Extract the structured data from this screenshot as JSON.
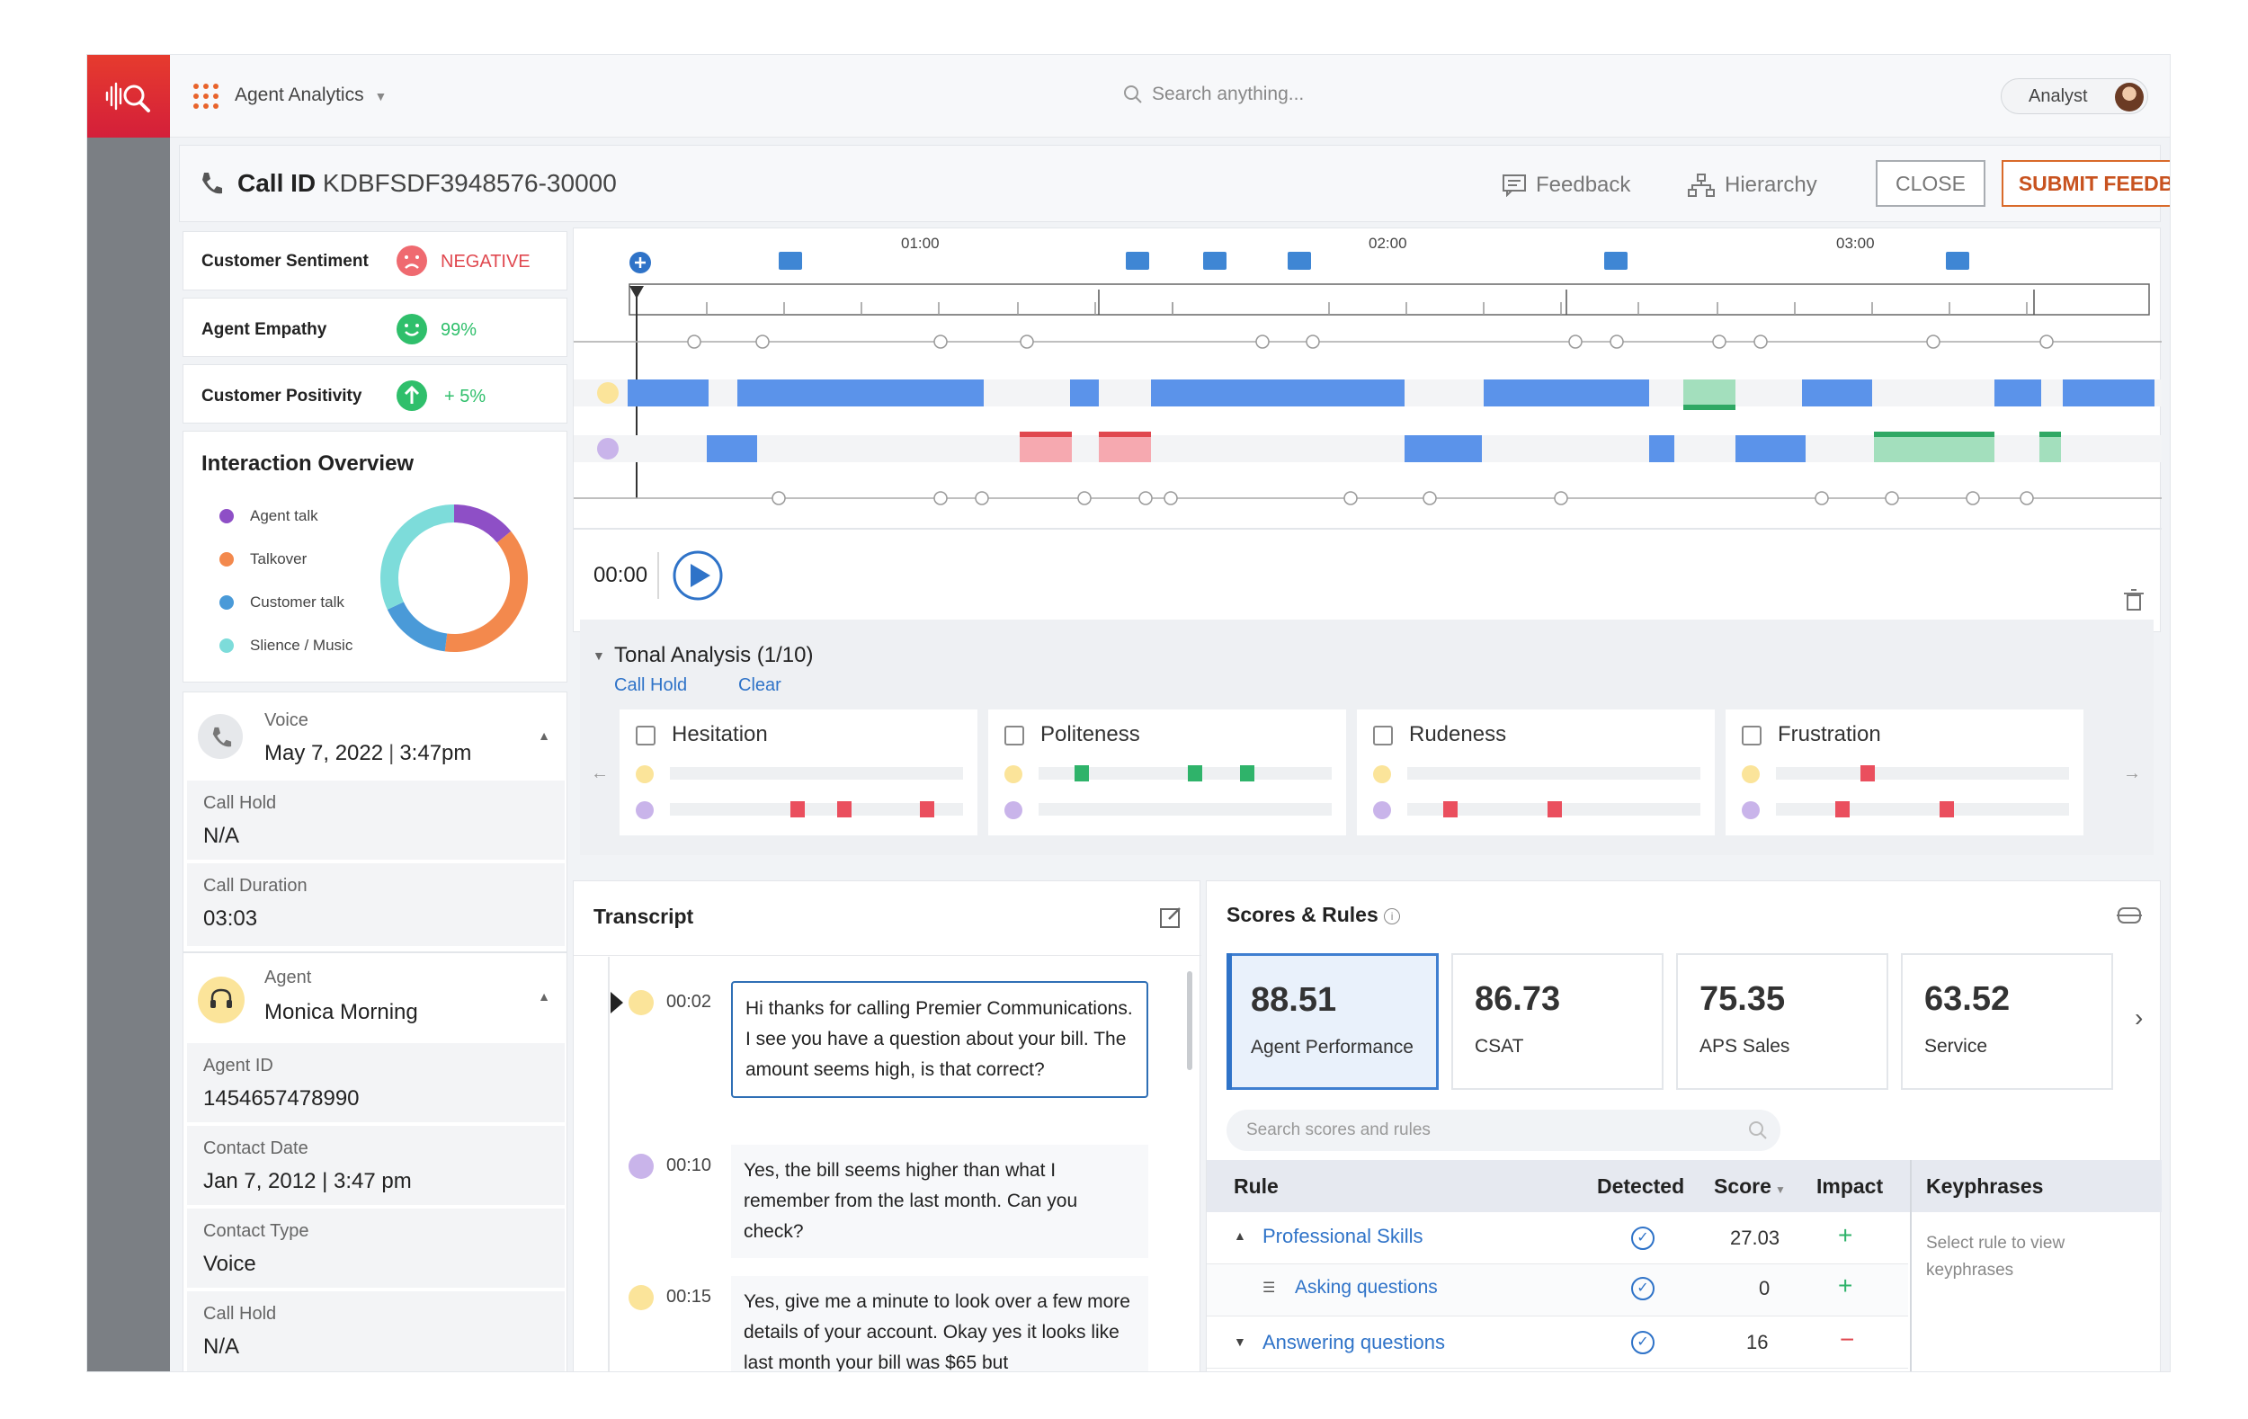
{
  "app": {
    "title": "Agent Analytics",
    "search_placeholder": "Search anything...",
    "user_role": "Analyst",
    "accent": "#e8632b"
  },
  "header": {
    "call_id_label": "Call ID",
    "call_id": "KDBFSDF3948576-30000",
    "feedback": "Feedback",
    "hierarchy": "Hierarchy",
    "close": "CLOSE",
    "submit": "SUBMIT FEEDBACK"
  },
  "metrics": {
    "sentiment": {
      "label": "Customer Sentiment",
      "value": "NEGATIVE",
      "color": "#e0484f"
    },
    "empathy": {
      "label": "Agent Empathy",
      "value": "99%",
      "color": "#2fbf6b"
    },
    "positivity": {
      "label": "Customer Positivity",
      "value": "+ 5%",
      "color": "#2fbf6b"
    }
  },
  "interaction": {
    "title": "Interaction Overview",
    "legend": [
      {
        "label": "Agent talk",
        "color": "#8e4fc6",
        "share": 0.14
      },
      {
        "label": "Talkover",
        "color": "#f3894d",
        "share": 0.38
      },
      {
        "label": "Customer talk",
        "color": "#4a9ad8",
        "share": 0.16
      },
      {
        "label": "Slience / Music",
        "color": "#7ddcda",
        "share": 0.32
      }
    ]
  },
  "voice": {
    "type": "Voice",
    "date": "May 7, 2022",
    "time": "3:47pm",
    "call_hold_label": "Call Hold",
    "call_hold": "N/A",
    "duration_label": "Call Duration",
    "duration": "03:03"
  },
  "agent": {
    "section": "Agent",
    "name": "Monica Morning",
    "id_label": "Agent ID",
    "id": "1454657478990",
    "contact_date_label": "Contact Date",
    "contact_date": "Jan 7, 2012 | 3:47 pm",
    "contact_type_label": "Contact Type",
    "contact_type": "Voice",
    "call_hold_label": "Call Hold",
    "call_hold": "N/A"
  },
  "timeline": {
    "ticks": [
      "01:00",
      "02:00",
      "03:00"
    ],
    "time": "00:00"
  },
  "tonal": {
    "title": "Tonal Analysis (1/10)",
    "call_hold": "Call Hold",
    "clear": "Clear",
    "categories": [
      "Hesitation",
      "Politeness",
      "Rudeness",
      "Frustration"
    ]
  },
  "transcript": {
    "title": "Transcript",
    "messages": [
      {
        "time": "00:02",
        "speaker": "agent",
        "text": "Hi thanks for calling Premier Communications. I see you have a question about your bill. The amount seems high, is that correct?"
      },
      {
        "time": "00:10",
        "speaker": "customer",
        "text": "Yes, the bill seems higher than what I remember from the last month. Can you check?"
      },
      {
        "time": "00:15",
        "speaker": "agent",
        "text": "Yes, give me a minute to look over a few more details of your account. Okay yes it looks like last month your bill was $65 but"
      }
    ]
  },
  "scores": {
    "title": "Scores & Rules",
    "cards": [
      {
        "value": "88.51",
        "name": "Agent Performance"
      },
      {
        "value": "86.73",
        "name": "CSAT"
      },
      {
        "value": "75.35",
        "name": "APS Sales"
      },
      {
        "value": "63.52",
        "name": "Service"
      }
    ],
    "search_placeholder": "Search scores and rules",
    "columns": {
      "rule": "Rule",
      "detected": "Detected",
      "score": "Score",
      "impact": "Impact",
      "keyphrases": "Keyphrases"
    },
    "keyphrase_hint": "Select rule to view keyphrases",
    "rules": [
      {
        "name": "Professional Skills",
        "score": "27.03",
        "impact": "+"
      },
      {
        "name": "Asking questions",
        "score": "0",
        "impact": "+"
      },
      {
        "name": "Answering questions",
        "score": "16",
        "impact": "−"
      }
    ]
  }
}
